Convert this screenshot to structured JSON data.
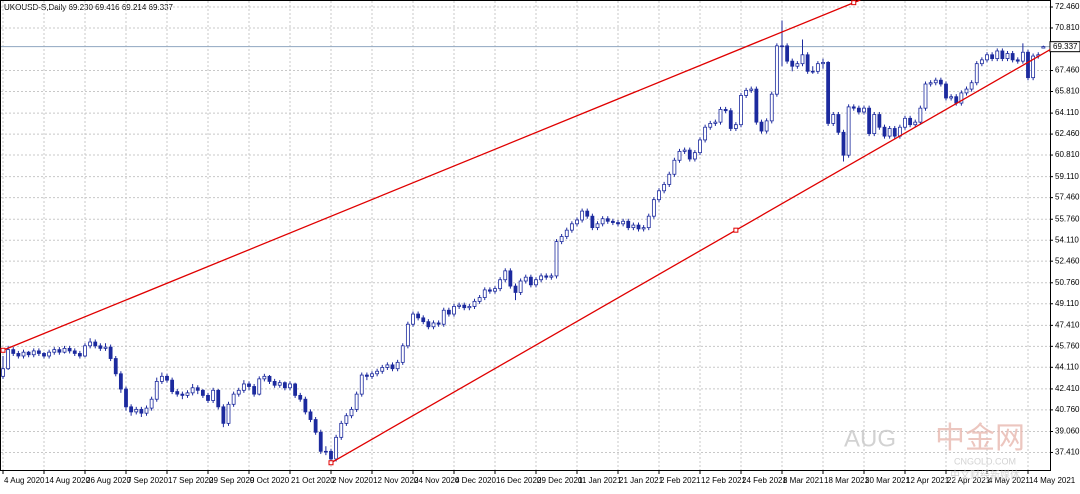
{
  "chart_data": {
    "type": "candlestick",
    "title": "UKOUSD-S,Daily  69.230 69.416 69.214 69.337",
    "up_color": "#ffffff",
    "down_color": "#1c2a9e",
    "line_color": "#1c2a9e",
    "grid": true,
    "ylim": [
      36.03,
      73.01
    ],
    "yticks": [
      {
        "value": 72.46,
        "label": "72.460"
      },
      {
        "value": 70.81,
        "label": "70.810"
      },
      {
        "value": 67.46,
        "label": "67.460"
      },
      {
        "value": 65.81,
        "label": "65.810"
      },
      {
        "value": 64.11,
        "label": "64.110"
      },
      {
        "value": 62.46,
        "label": "62.460"
      },
      {
        "value": 60.81,
        "label": "60.810"
      },
      {
        "value": 59.11,
        "label": "59.110"
      },
      {
        "value": 57.46,
        "label": "57.460"
      },
      {
        "value": 55.76,
        "label": "55.760"
      },
      {
        "value": 54.11,
        "label": "54.110"
      },
      {
        "value": 52.46,
        "label": "52.460"
      },
      {
        "value": 50.76,
        "label": "50.760"
      },
      {
        "value": 49.11,
        "label": "49.110"
      },
      {
        "value": 47.41,
        "label": "47.410"
      },
      {
        "value": 45.76,
        "label": "45.760"
      },
      {
        "value": 44.11,
        "label": "44.110"
      },
      {
        "value": 42.41,
        "label": "42.410"
      },
      {
        "value": 40.76,
        "label": "40.760"
      },
      {
        "value": 39.06,
        "label": "39.060"
      },
      {
        "value": 37.41,
        "label": "37.410"
      }
    ],
    "price_line": 69.337,
    "price_line_color": "#8fa6c0",
    "trendlines": [
      {
        "color": "#e00000",
        "points": [
          [
            0,
            45.45
          ],
          [
            166,
            72.8
          ]
        ]
      },
      {
        "color": "#e00000",
        "points": [
          [
            64,
            36.6
          ],
          [
            143,
            54.9
          ]
        ]
      }
    ],
    "watermark": [
      "AUG",
      "中金网",
      "CNGOLD.COM",
      "中文财经新媒体"
    ],
    "categories": [
      "4 Aug 2020",
      null,
      null,
      null,
      null,
      null,
      null,
      null,
      "14 Aug 2020",
      null,
      null,
      null,
      null,
      null,
      null,
      null,
      "26 Aug 2020",
      null,
      null,
      null,
      null,
      null,
      null,
      null,
      "7 Sep 2020",
      null,
      null,
      null,
      null,
      null,
      null,
      null,
      "17 Sep 2020",
      null,
      null,
      null,
      null,
      null,
      null,
      null,
      "29 Sep 2020",
      null,
      null,
      null,
      null,
      null,
      null,
      null,
      "9 Oct 2020",
      null,
      null,
      null,
      null,
      null,
      null,
      null,
      "21 Oct 2020",
      null,
      null,
      null,
      null,
      null,
      null,
      null,
      "2 Nov 2020",
      null,
      null,
      null,
      null,
      null,
      null,
      null,
      "12 Nov 2020",
      null,
      null,
      null,
      null,
      null,
      null,
      null,
      "24 Nov 2020",
      null,
      null,
      null,
      null,
      null,
      null,
      null,
      "4 Dec 2020",
      null,
      null,
      null,
      null,
      null,
      null,
      null,
      "16 Dec 2020",
      null,
      null,
      null,
      null,
      null,
      null,
      null,
      "29 Dec 2020",
      null,
      null,
      null,
      null,
      null,
      null,
      null,
      "11 Jan 2021",
      null,
      null,
      null,
      null,
      null,
      null,
      null,
      "21 Jan 2021",
      null,
      null,
      null,
      null,
      null,
      null,
      null,
      "2 Feb 2021",
      null,
      null,
      null,
      null,
      null,
      null,
      null,
      "12 Feb 2021",
      null,
      null,
      null,
      null,
      null,
      null,
      null,
      "24 Feb 2021",
      null,
      null,
      null,
      null,
      null,
      null,
      null,
      "8 Mar 2021",
      null,
      null,
      null,
      null,
      null,
      null,
      null,
      "18 Mar 2021",
      null,
      null,
      null,
      null,
      null,
      null,
      null,
      "30 Mar 2021",
      null,
      null,
      null,
      null,
      null,
      null,
      null,
      "12 Apr 2021",
      null,
      null,
      null,
      null,
      null,
      null,
      null,
      "22 Apr 2021",
      null,
      null,
      null,
      null,
      null,
      null,
      null,
      "4 May 2021",
      null,
      null,
      null,
      null,
      null,
      null,
      null,
      "14 May 2021",
      null,
      null,
      null
    ],
    "ohlc": [
      [
        43.4,
        45.0,
        43.2,
        44.0
      ],
      [
        44.0,
        45.8,
        43.9,
        45.5
      ],
      [
        45.5,
        45.7,
        45.0,
        45.2
      ],
      [
        45.2,
        45.4,
        44.8,
        45.0
      ],
      [
        45.0,
        45.5,
        44.8,
        45.3
      ],
      [
        45.3,
        45.4,
        44.9,
        45.1
      ],
      [
        45.1,
        45.6,
        44.9,
        45.4
      ],
      [
        45.4,
        45.6,
        45.0,
        45.2
      ],
      [
        45.2,
        45.3,
        44.8,
        45.0
      ],
      [
        45.0,
        45.5,
        44.8,
        45.3
      ],
      [
        45.3,
        45.7,
        45.1,
        45.5
      ],
      [
        45.5,
        45.7,
        45.1,
        45.3
      ],
      [
        45.3,
        45.8,
        45.2,
        45.6
      ],
      [
        45.6,
        45.8,
        45.2,
        45.4
      ],
      [
        45.4,
        45.6,
        45.0,
        45.2
      ],
      [
        45.2,
        45.4,
        44.8,
        45.0
      ],
      [
        45.0,
        46.0,
        44.9,
        45.8
      ],
      [
        45.8,
        46.4,
        45.6,
        46.1
      ],
      [
        46.1,
        46.3,
        45.6,
        45.8
      ],
      [
        45.8,
        46.0,
        45.4,
        45.6
      ],
      [
        45.6,
        46.0,
        45.4,
        45.7
      ],
      [
        45.7,
        45.9,
        44.6,
        44.8
      ],
      [
        44.8,
        45.0,
        43.4,
        43.6
      ],
      [
        43.6,
        43.8,
        42.1,
        42.4
      ],
      [
        42.4,
        42.6,
        40.7,
        41.0
      ],
      [
        41.0,
        41.2,
        40.3,
        40.6
      ],
      [
        40.6,
        41.0,
        40.4,
        40.8
      ],
      [
        40.8,
        41.0,
        40.2,
        40.5
      ],
      [
        40.5,
        41.1,
        40.3,
        40.9
      ],
      [
        40.9,
        41.8,
        40.7,
        41.6
      ],
      [
        41.6,
        43.3,
        41.4,
        43.0
      ],
      [
        43.0,
        43.7,
        42.8,
        43.4
      ],
      [
        43.4,
        43.6,
        42.9,
        43.1
      ],
      [
        43.1,
        43.3,
        42.0,
        42.2
      ],
      [
        42.2,
        42.4,
        41.8,
        42.0
      ],
      [
        42.0,
        42.2,
        41.6,
        41.9
      ],
      [
        41.9,
        42.3,
        41.7,
        42.1
      ],
      [
        42.1,
        42.8,
        41.9,
        42.5
      ],
      [
        42.5,
        42.7,
        42.0,
        42.3
      ],
      [
        42.3,
        42.4,
        41.7,
        41.9
      ],
      [
        41.9,
        42.1,
        41.3,
        41.5
      ],
      [
        41.5,
        42.5,
        41.3,
        42.3
      ],
      [
        42.3,
        42.4,
        40.8,
        41.0
      ],
      [
        41.0,
        41.2,
        39.4,
        39.7
      ],
      [
        39.7,
        41.4,
        39.5,
        41.2
      ],
      [
        41.2,
        42.2,
        41.0,
        42.0
      ],
      [
        42.0,
        42.5,
        41.8,
        42.3
      ],
      [
        42.3,
        43.1,
        42.1,
        42.8
      ],
      [
        42.8,
        43.0,
        42.3,
        42.6
      ],
      [
        42.6,
        42.8,
        41.8,
        42.0
      ],
      [
        42.0,
        43.4,
        41.9,
        43.2
      ],
      [
        43.2,
        43.6,
        43.0,
        43.4
      ],
      [
        43.4,
        43.5,
        42.8,
        43.0
      ],
      [
        43.0,
        43.2,
        42.5,
        42.7
      ],
      [
        42.7,
        43.1,
        42.5,
        42.9
      ],
      [
        42.9,
        43.0,
        42.3,
        42.5
      ],
      [
        42.5,
        43.0,
        42.3,
        42.8
      ],
      [
        42.8,
        42.9,
        41.7,
        41.9
      ],
      [
        41.9,
        42.1,
        41.4,
        41.6
      ],
      [
        41.6,
        41.8,
        40.4,
        40.6
      ],
      [
        40.6,
        40.8,
        39.8,
        40.0
      ],
      [
        40.0,
        40.2,
        38.8,
        39.0
      ],
      [
        39.0,
        39.2,
        37.3,
        37.5
      ],
      [
        37.5,
        37.9,
        37.2,
        37.5
      ],
      [
        37.5,
        37.7,
        36.5,
        36.9
      ],
      [
        36.9,
        38.8,
        36.7,
        38.6
      ],
      [
        38.6,
        39.9,
        38.4,
        39.7
      ],
      [
        39.7,
        40.5,
        39.5,
        40.3
      ],
      [
        40.3,
        41.0,
        40.1,
        40.8
      ],
      [
        40.8,
        42.2,
        40.6,
        42.0
      ],
      [
        42.0,
        43.7,
        41.8,
        43.5
      ],
      [
        43.5,
        43.7,
        43.1,
        43.4
      ],
      [
        43.4,
        43.8,
        43.2,
        43.6
      ],
      [
        43.6,
        44.0,
        43.4,
        43.8
      ],
      [
        43.8,
        44.3,
        43.6,
        44.1
      ],
      [
        44.1,
        44.5,
        43.9,
        44.3
      ],
      [
        44.3,
        44.5,
        43.8,
        44.0
      ],
      [
        44.0,
        44.7,
        43.8,
        44.5
      ],
      [
        44.5,
        46.0,
        44.3,
        45.8
      ],
      [
        45.8,
        47.7,
        45.6,
        47.5
      ],
      [
        47.5,
        48.5,
        47.3,
        48.3
      ],
      [
        48.3,
        48.5,
        47.8,
        48.0
      ],
      [
        48.0,
        48.2,
        47.5,
        47.7
      ],
      [
        47.7,
        47.9,
        47.1,
        47.3
      ],
      [
        47.3,
        47.8,
        47.1,
        47.6
      ],
      [
        47.6,
        47.8,
        47.3,
        47.5
      ],
      [
        47.5,
        48.8,
        47.3,
        48.6
      ],
      [
        48.6,
        48.8,
        48.1,
        48.3
      ],
      [
        48.3,
        49.1,
        48.1,
        48.9
      ],
      [
        48.9,
        49.2,
        48.7,
        49.0
      ],
      [
        49.0,
        49.2,
        48.6,
        48.8
      ],
      [
        48.8,
        49.1,
        48.6,
        48.9
      ],
      [
        48.9,
        49.5,
        48.7,
        49.3
      ],
      [
        49.3,
        49.8,
        49.1,
        49.6
      ],
      [
        49.6,
        50.4,
        49.4,
        50.2
      ],
      [
        50.2,
        50.4,
        49.9,
        50.1
      ],
      [
        50.1,
        50.5,
        49.9,
        50.3
      ],
      [
        50.3,
        51.2,
        50.1,
        51.0
      ],
      [
        51.0,
        51.9,
        50.8,
        51.7
      ],
      [
        51.7,
        51.9,
        50.3,
        50.5
      ],
      [
        50.5,
        50.7,
        49.4,
        50.0
      ],
      [
        50.0,
        51.1,
        49.8,
        50.9
      ],
      [
        50.9,
        51.4,
        50.7,
        51.2
      ],
      [
        51.2,
        51.4,
        50.4,
        50.6
      ],
      [
        50.6,
        51.2,
        50.4,
        51.0
      ],
      [
        51.0,
        51.5,
        50.8,
        51.3
      ],
      [
        51.3,
        51.5,
        51.0,
        51.2
      ],
      [
        51.2,
        51.5,
        51.0,
        51.3
      ],
      [
        51.3,
        54.2,
        51.1,
        54.0
      ],
      [
        54.0,
        54.6,
        53.8,
        54.4
      ],
      [
        54.4,
        55.1,
        54.2,
        54.9
      ],
      [
        54.9,
        55.6,
        54.7,
        55.4
      ],
      [
        55.4,
        55.9,
        55.2,
        55.7
      ],
      [
        55.7,
        56.6,
        55.5,
        56.4
      ],
      [
        56.4,
        56.6,
        55.8,
        56.0
      ],
      [
        56.0,
        56.2,
        54.9,
        55.1
      ],
      [
        55.1,
        55.6,
        54.9,
        55.4
      ],
      [
        55.4,
        56.0,
        55.2,
        55.8
      ],
      [
        55.8,
        56.0,
        55.4,
        55.6
      ],
      [
        55.6,
        55.8,
        55.3,
        55.5
      ],
      [
        55.5,
        55.7,
        55.2,
        55.4
      ],
      [
        55.4,
        55.8,
        55.2,
        55.6
      ],
      [
        55.6,
        55.8,
        54.9,
        55.1
      ],
      [
        55.1,
        55.5,
        54.9,
        55.3
      ],
      [
        55.3,
        55.5,
        54.8,
        55.0
      ],
      [
        55.0,
        55.3,
        54.8,
        55.1
      ],
      [
        55.1,
        56.2,
        54.9,
        56.0
      ],
      [
        56.0,
        57.5,
        55.8,
        57.3
      ],
      [
        57.3,
        58.2,
        57.1,
        58.0
      ],
      [
        58.0,
        58.7,
        57.8,
        58.5
      ],
      [
        58.5,
        59.5,
        58.3,
        59.3
      ],
      [
        59.3,
        60.6,
        59.1,
        60.4
      ],
      [
        60.4,
        61.3,
        60.2,
        61.1
      ],
      [
        61.1,
        61.4,
        60.9,
        61.2
      ],
      [
        61.2,
        61.4,
        60.3,
        60.5
      ],
      [
        60.5,
        61.2,
        60.3,
        61.0
      ],
      [
        61.0,
        62.2,
        60.8,
        62.0
      ],
      [
        62.0,
        63.2,
        61.8,
        63.0
      ],
      [
        63.0,
        63.5,
        62.8,
        63.3
      ],
      [
        63.3,
        63.6,
        63.1,
        63.4
      ],
      [
        63.4,
        64.6,
        63.2,
        64.4
      ],
      [
        64.4,
        64.6,
        64.1,
        64.3
      ],
      [
        64.3,
        64.5,
        62.7,
        62.9
      ],
      [
        62.9,
        63.4,
        62.7,
        63.2
      ],
      [
        63.2,
        65.7,
        63.0,
        65.5
      ],
      [
        65.5,
        66.1,
        65.3,
        65.9
      ],
      [
        65.9,
        66.2,
        65.7,
        66.0
      ],
      [
        66.0,
        66.2,
        63.2,
        63.4
      ],
      [
        63.4,
        63.6,
        62.5,
        62.7
      ],
      [
        62.7,
        63.7,
        62.5,
        63.5
      ],
      [
        63.5,
        65.8,
        63.3,
        65.6
      ],
      [
        65.6,
        69.6,
        65.4,
        69.4
      ],
      [
        69.4,
        71.4,
        67.8,
        69.4
      ],
      [
        69.4,
        69.6,
        68.0,
        68.2
      ],
      [
        68.2,
        68.4,
        67.4,
        67.8
      ],
      [
        67.8,
        68.2,
        67.6,
        68.0
      ],
      [
        68.0,
        69.9,
        67.8,
        68.7
      ],
      [
        68.7,
        68.9,
        67.2,
        67.4
      ],
      [
        67.4,
        67.8,
        67.2,
        67.4
      ],
      [
        67.4,
        68.2,
        67.2,
        68.0
      ],
      [
        68.0,
        68.4,
        67.6,
        68.1
      ],
      [
        68.1,
        68.2,
        63.1,
        63.3
      ],
      [
        63.3,
        64.2,
        63.1,
        64.0
      ],
      [
        64.0,
        64.2,
        62.4,
        62.6
      ],
      [
        62.6,
        62.8,
        60.3,
        60.8
      ],
      [
        60.8,
        64.8,
        60.6,
        64.6
      ],
      [
        64.6,
        64.8,
        64.3,
        64.5
      ],
      [
        64.5,
        64.7,
        64.0,
        64.2
      ],
      [
        64.2,
        64.7,
        64.0,
        64.5
      ],
      [
        64.5,
        64.7,
        62.3,
        62.5
      ],
      [
        62.5,
        64.2,
        62.3,
        64.0
      ],
      [
        64.0,
        64.2,
        62.8,
        63.0
      ],
      [
        63.0,
        63.2,
        62.1,
        62.3
      ],
      [
        62.3,
        63.1,
        62.1,
        62.9
      ],
      [
        62.9,
        63.1,
        62.1,
        62.3
      ],
      [
        62.3,
        63.2,
        62.1,
        63.0
      ],
      [
        63.0,
        63.9,
        62.8,
        63.7
      ],
      [
        63.7,
        63.9,
        63.0,
        63.2
      ],
      [
        63.2,
        63.6,
        63.0,
        63.4
      ],
      [
        63.4,
        64.7,
        63.2,
        64.5
      ],
      [
        64.5,
        66.6,
        64.3,
        66.4
      ],
      [
        66.4,
        66.7,
        66.2,
        66.5
      ],
      [
        66.5,
        66.9,
        66.3,
        66.7
      ],
      [
        66.7,
        66.9,
        66.2,
        66.4
      ],
      [
        66.4,
        66.6,
        65.1,
        65.3
      ],
      [
        65.3,
        65.6,
        65.1,
        65.4
      ],
      [
        65.4,
        65.6,
        64.7,
        64.9
      ],
      [
        64.9,
        65.9,
        64.7,
        65.7
      ],
      [
        65.7,
        66.2,
        65.5,
        66.0
      ],
      [
        66.0,
        66.7,
        65.8,
        66.5
      ],
      [
        66.5,
        68.2,
        66.3,
        68.0
      ],
      [
        68.0,
        68.5,
        67.8,
        68.3
      ],
      [
        68.3,
        68.9,
        68.1,
        68.7
      ],
      [
        68.7,
        68.9,
        68.2,
        68.4
      ],
      [
        68.4,
        69.2,
        68.2,
        69.0
      ],
      [
        69.0,
        69.2,
        68.2,
        68.4
      ],
      [
        68.4,
        69.0,
        68.2,
        68.8
      ],
      [
        68.8,
        69.0,
        68.1,
        68.3
      ],
      [
        68.3,
        68.5,
        68.0,
        68.2
      ],
      [
        68.2,
        69.6,
        68.0,
        68.9
      ],
      [
        68.9,
        69.1,
        66.7,
        66.9
      ],
      [
        66.9,
        68.8,
        66.7,
        68.6
      ],
      [
        68.6,
        68.9,
        68.4,
        68.7
      ],
      [
        69.23,
        69.416,
        69.214,
        69.337
      ]
    ]
  }
}
